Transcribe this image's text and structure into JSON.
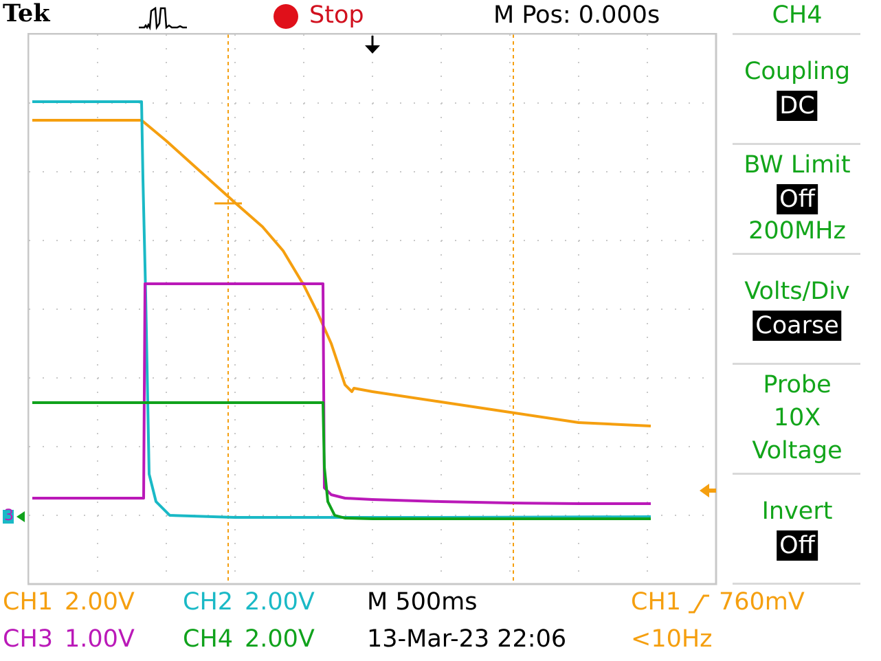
{
  "header": {
    "brand": "Tek",
    "acquire_icon": "acquisition-pulse-icon",
    "run_state": "Stop",
    "horizontal_position": "M Pos: 0.000s"
  },
  "side_menu": {
    "channel": "CH4",
    "items": [
      {
        "title": "Coupling",
        "value": "DC"
      },
      {
        "title": "BW Limit",
        "value": "Off",
        "extra": "200MHz"
      },
      {
        "title": "Volts/Div",
        "value": "Coarse"
      },
      {
        "title": "Probe",
        "lines": [
          "10X",
          "Voltage"
        ]
      },
      {
        "title": "Invert",
        "value": "Off"
      }
    ]
  },
  "status_bar": {
    "ch1_label": "CH1",
    "ch1_scale": "2.00V",
    "ch2_label": "CH2",
    "ch2_scale": "2.00V",
    "ch3_label": "CH3",
    "ch3_scale": "1.00V",
    "ch4_label": "CH4",
    "ch4_scale": "2.00V",
    "timebase": "M 500ms",
    "datetime": "13-Mar-23 22:06",
    "trigger_source": "CH1",
    "trigger_slope_icon": "rising-edge-icon",
    "trigger_level": "760mV",
    "trigger_freq": "<10Hz"
  },
  "markers": {
    "ground_marker": "3",
    "trigger_position_icon": "trigger-position-arrow-icon",
    "trigger_level_icon": "trigger-level-arrow-icon"
  },
  "colors": {
    "ch1": "#f59f0f",
    "ch2": "#1ab9c6",
    "ch3": "#ba19b8",
    "ch4": "#10a21c",
    "grid": "#c8c8c8",
    "menu_text": "#12a51a",
    "stop": "#e0101a"
  },
  "chart_data": {
    "type": "line",
    "title": "",
    "xlabel": "",
    "ylabel": "",
    "x_unit": "div",
    "y_unit": "div",
    "xlim": [
      0,
      10
    ],
    "ylim": [
      0,
      8
    ],
    "grid": true,
    "series": [
      {
        "name": "CH1",
        "color": "#f59f0f",
        "x": [
          0.05,
          1.64,
          2.0,
          2.5,
          3.0,
          3.4,
          3.7,
          4.0,
          4.2,
          4.4,
          4.6,
          4.7,
          4.73,
          5.0,
          6.0,
          7.0,
          8.0,
          9.05
        ],
        "y": [
          6.75,
          6.75,
          6.45,
          6.0,
          5.55,
          5.2,
          4.85,
          4.35,
          3.95,
          3.5,
          2.9,
          2.8,
          2.85,
          2.8,
          2.65,
          2.5,
          2.35,
          2.3
        ]
      },
      {
        "name": "CH2",
        "color": "#1ab9c6",
        "x": [
          0.05,
          1.64,
          1.66,
          1.7,
          1.75,
          1.85,
          2.05,
          3.0,
          6.0,
          9.05
        ],
        "y": [
          7.02,
          7.02,
          5.9,
          4.2,
          1.6,
          1.2,
          1.0,
          0.97,
          0.97,
          0.98
        ]
      },
      {
        "name": "CH3",
        "color": "#ba19b8",
        "x": [
          0.05,
          1.67,
          1.69,
          4.28,
          4.3,
          4.4,
          4.6,
          5.0,
          6.0,
          7.0,
          8.0,
          9.05
        ],
        "y": [
          1.25,
          1.25,
          4.37,
          4.37,
          1.4,
          1.3,
          1.25,
          1.23,
          1.2,
          1.18,
          1.17,
          1.17
        ]
      },
      {
        "name": "CH4",
        "color": "#10a21c",
        "x": [
          0.05,
          4.28,
          4.3,
          4.35,
          4.45,
          4.6,
          5.0,
          6.0,
          9.05
        ],
        "y": [
          2.64,
          2.64,
          1.7,
          1.2,
          1.0,
          0.96,
          0.95,
          0.95,
          0.95
        ]
      }
    ],
    "cursors_x": [
      2.9,
      7.05
    ]
  }
}
